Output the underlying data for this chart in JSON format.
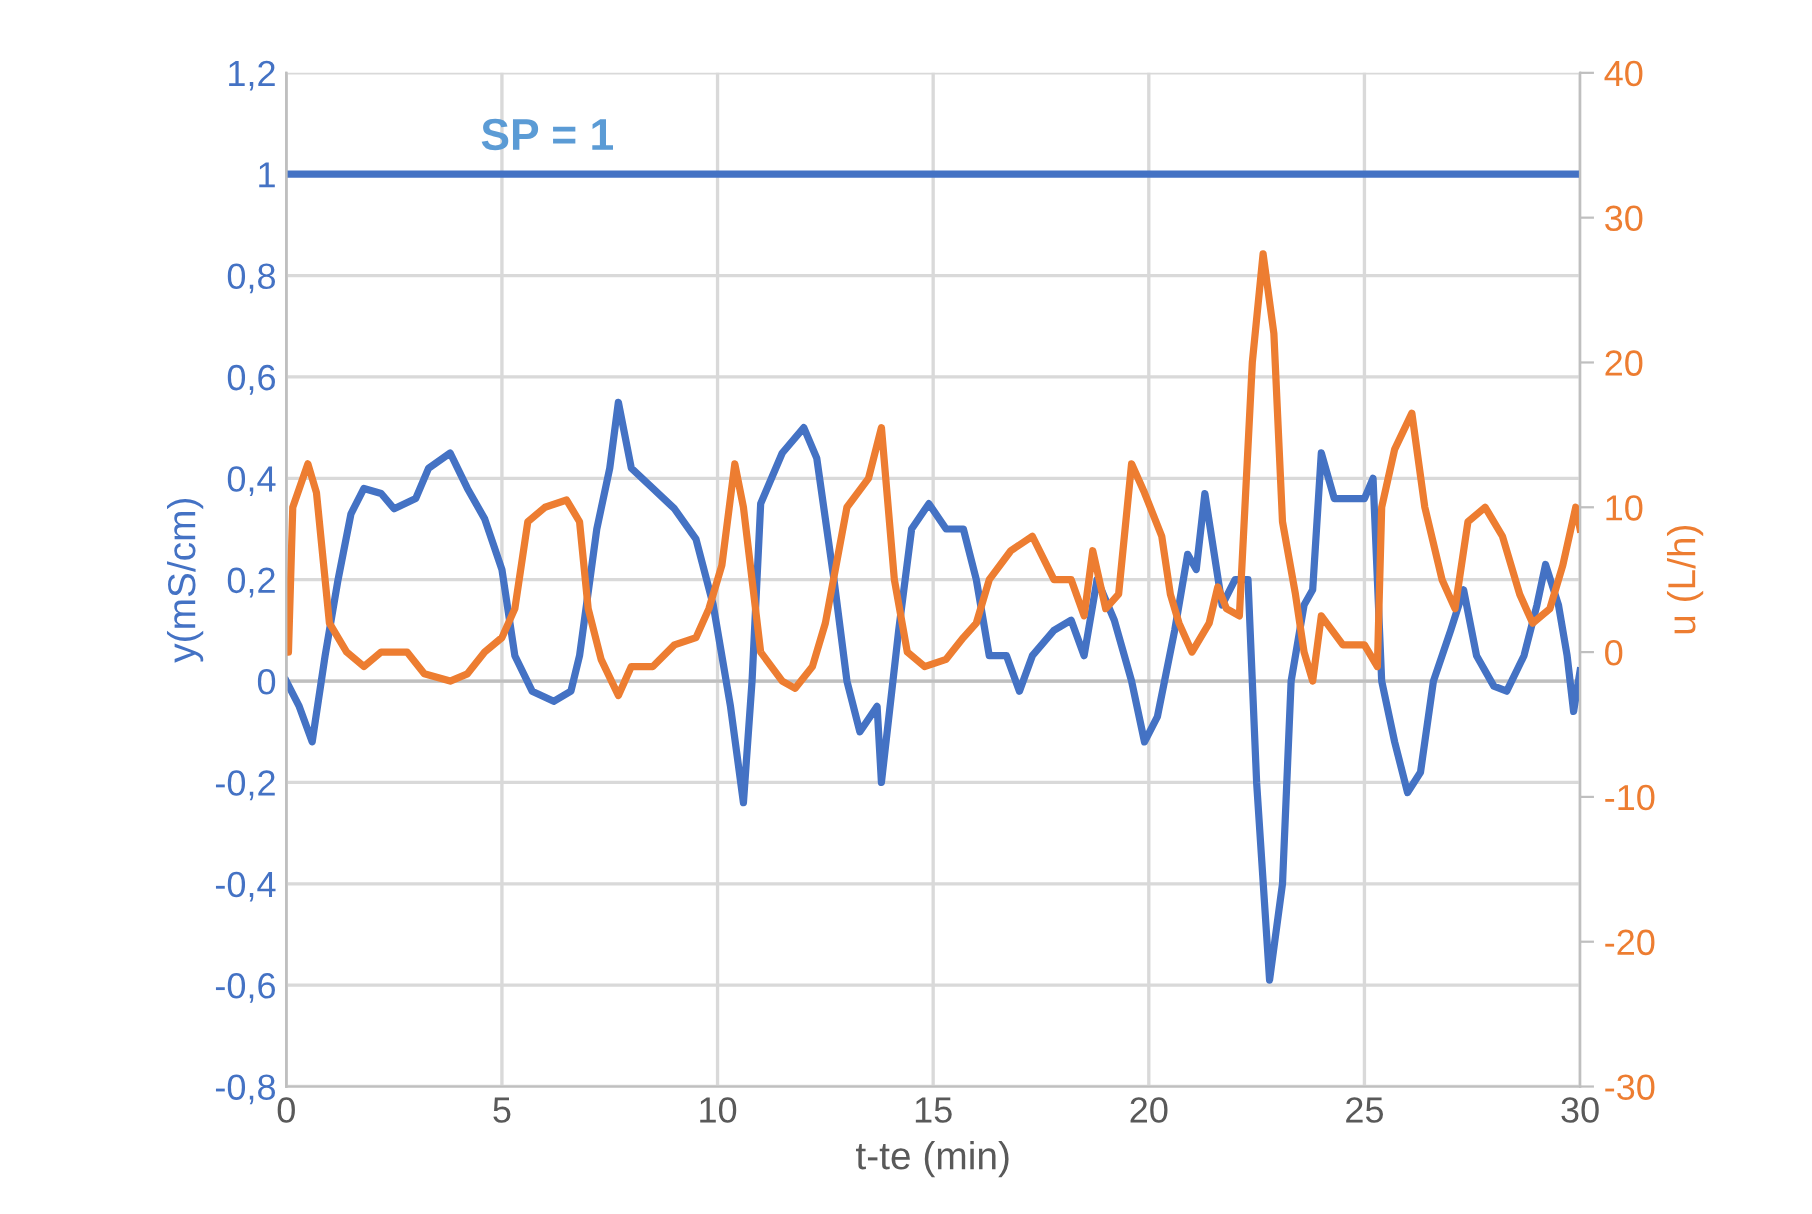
{
  "chart_data": {
    "type": "line",
    "xlabel": "t-te (min)",
    "ylabel": "y(mS/cm)",
    "y2label": "u (L/h)",
    "xlim": [
      0,
      30
    ],
    "xticks": [
      0,
      5,
      10,
      15,
      20,
      25,
      30
    ],
    "ylim": [
      -0.8,
      1.2
    ],
    "yticks": [
      {
        "value": -0.8,
        "label": "-0,8"
      },
      {
        "value": -0.6,
        "label": "-0,6"
      },
      {
        "value": -0.4,
        "label": "-0,4"
      },
      {
        "value": -0.2,
        "label": "-0,2"
      },
      0,
      {
        "value": 0.2,
        "label": "0,2"
      },
      {
        "value": 0.4,
        "label": "0,4"
      },
      {
        "value": 0.6,
        "label": "0,6"
      },
      {
        "value": 0.8,
        "label": "0,8"
      },
      1,
      {
        "value": 1.2,
        "label": "1,2"
      }
    ],
    "y2lim": [
      -30,
      40
    ],
    "y2ticks": [
      -30,
      -20,
      -10,
      0,
      10,
      20,
      30,
      40
    ],
    "grid": true,
    "ref_lines": [
      {
        "axis": "y",
        "value": 1,
        "label": "SP = 1",
        "color": "#4472c4"
      }
    ],
    "series": [
      {
        "color": "#4472c4",
        "x": [
          0,
          0.3,
          0.6,
          0.9,
          1.2,
          1.5,
          1.8,
          2.2,
          2.5,
          3.0,
          3.3,
          3.8,
          4.2,
          4.6,
          5.0,
          5.3,
          5.7,
          6.2,
          6.6,
          6.8,
          7.2,
          7.5,
          7.7,
          8.0,
          8.5,
          9.0,
          9.5,
          9.9,
          10.3,
          10.6,
          10.8,
          11.0,
          11.5,
          12.0,
          12.3,
          12.7,
          13.0,
          13.3,
          13.7,
          13.8,
          14.2,
          14.5,
          14.9,
          15.3,
          15.7,
          16.0,
          16.3,
          16.7,
          17.0,
          17.3,
          17.8,
          18.2,
          18.5,
          18.8,
          19.2,
          19.6,
          19.9,
          20.2,
          20.6,
          20.9,
          21.1,
          21.3,
          21.7,
          22.0,
          22.3,
          22.5,
          22.8,
          23.1,
          23.3,
          23.6,
          23.8,
          24.0,
          24.3,
          25.0,
          25.2,
          25.4,
          25.7,
          26.0,
          26.3,
          26.6,
          27.0,
          27.3,
          27.6,
          28.0,
          28.3,
          28.7,
          29.0,
          29.2,
          29.5,
          29.7,
          29.85,
          30.0
        ],
        "values": [
          0,
          -0.05,
          -0.12,
          0.05,
          0.2,
          0.33,
          0.38,
          0.37,
          0.34,
          0.36,
          0.42,
          0.45,
          0.38,
          0.32,
          0.22,
          0.05,
          -0.02,
          -0.04,
          -0.02,
          0.05,
          0.3,
          0.42,
          0.55,
          0.42,
          0.38,
          0.34,
          0.28,
          0.15,
          -0.05,
          -0.24,
          0.0,
          0.35,
          0.45,
          0.5,
          0.44,
          0.2,
          0.0,
          -0.1,
          -0.05,
          -0.2,
          0.1,
          0.3,
          0.35,
          0.3,
          0.3,
          0.2,
          0.05,
          0.05,
          -0.02,
          0.05,
          0.1,
          0.12,
          0.05,
          0.2,
          0.12,
          0.0,
          -0.12,
          -0.07,
          0.1,
          0.25,
          0.22,
          0.37,
          0.15,
          0.2,
          0.2,
          -0.2,
          -0.59,
          -0.4,
          0.0,
          0.15,
          0.18,
          0.45,
          0.36,
          0.36,
          0.4,
          0.0,
          -0.12,
          -0.22,
          -0.18,
          0.0,
          0.1,
          0.18,
          0.05,
          -0.01,
          -0.02,
          0.05,
          0.15,
          0.23,
          0.15,
          0.05,
          -0.06,
          0.02
        ]
      },
      {
        "color": "#ed7d31",
        "axis": "y2",
        "x": [
          0,
          0.05,
          0.15,
          0.5,
          0.7,
          1.0,
          1.4,
          1.8,
          2.2,
          2.8,
          3.2,
          3.8,
          4.2,
          4.6,
          5.0,
          5.3,
          5.6,
          6.0,
          6.5,
          6.8,
          7.0,
          7.3,
          7.7,
          8.0,
          8.5,
          9.0,
          9.5,
          9.8,
          10.1,
          10.4,
          10.6,
          11.0,
          11.5,
          11.8,
          12.2,
          12.5,
          13.0,
          13.5,
          13.8,
          14.1,
          14.4,
          14.8,
          15.3,
          15.7,
          16.0,
          16.3,
          16.8,
          17.3,
          17.8,
          18.2,
          18.5,
          18.7,
          19.0,
          19.3,
          19.6,
          19.9,
          20.3,
          20.5,
          20.7,
          21.0,
          21.2,
          21.4,
          21.6,
          21.8,
          22.1,
          22.4,
          22.65,
          22.9,
          23.1,
          23.4,
          23.6,
          23.8,
          24.0,
          24.5,
          25.0,
          25.3,
          25.4,
          25.7,
          26.1,
          26.4,
          26.8,
          27.1,
          27.4,
          27.8,
          28.2,
          28.6,
          28.9,
          29.3,
          29.6,
          29.9,
          30.0
        ],
        "values": [
          0,
          0,
          10,
          13,
          11,
          2,
          0,
          -1,
          0,
          0,
          -1.5,
          -2,
          -1.5,
          0,
          1,
          3,
          9,
          10,
          10.5,
          9,
          3,
          -0.5,
          -3,
          -1,
          -1,
          0.5,
          1,
          3,
          6,
          13,
          10,
          0,
          -2,
          -2.5,
          -1,
          2,
          10,
          12,
          15.5,
          5,
          0,
          -1,
          -0.5,
          1,
          2,
          5,
          7,
          8,
          5,
          5,
          2.5,
          7,
          3,
          4,
          13,
          11,
          8,
          4,
          2,
          0,
          1,
          2,
          4.5,
          3,
          2.5,
          20,
          27.5,
          22,
          9,
          4,
          0,
          -2,
          2.5,
          0.5,
          0.5,
          -1,
          10,
          14,
          16.5,
          10,
          5,
          3,
          9,
          10,
          8,
          4,
          2,
          3,
          6,
          10,
          8.5
        ]
      }
    ]
  }
}
